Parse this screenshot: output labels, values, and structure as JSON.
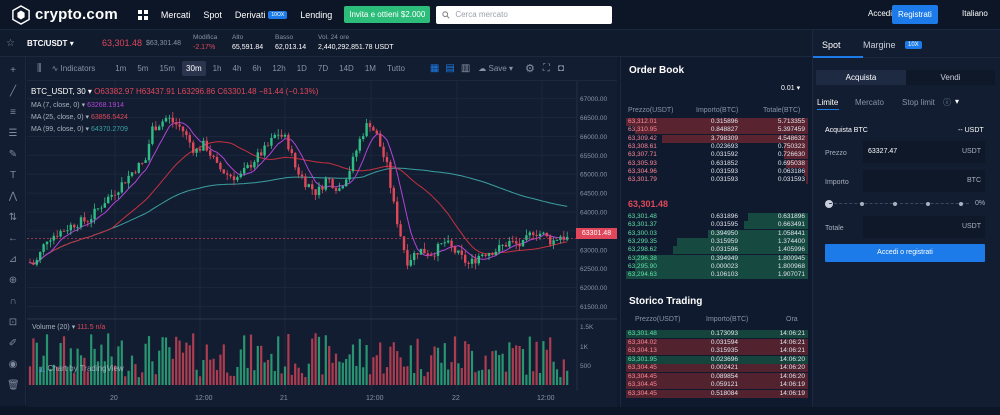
{
  "nav": {
    "brand": "crypto.com",
    "links": [
      {
        "label": "Mercati",
        "badge": ""
      },
      {
        "label": "Spot",
        "badge": ""
      },
      {
        "label": "Derivati",
        "badge": "10OX"
      },
      {
        "label": "Lending",
        "badge": ""
      }
    ],
    "invite_label": "Invita e ottieni $2.000",
    "search_placeholder": "Cerca mercato",
    "login_label": "Accedi",
    "register_label": "Registrati",
    "language": "Italiano"
  },
  "ticker": {
    "pair": "BTC/USDT",
    "price": "63,301.48",
    "price_usd": "$63,301.48",
    "change_label": "Modifica",
    "change_value": "-2.17%",
    "high_label": "Alto",
    "high_value": "65,591.84",
    "low_label": "Basso",
    "low_value": "62,013.14",
    "vol_label": "Vol. 24 ore",
    "vol_value": "2,440,292,851.78 USDT"
  },
  "chart_toolbar": {
    "indicators_label": "Indicators",
    "timeframes": [
      "1m",
      "5m",
      "15m",
      "30m",
      "1h",
      "4h",
      "6h",
      "12h",
      "1D",
      "7D",
      "14D",
      "1M",
      "Tutto"
    ],
    "active_timeframe": "30m",
    "save_label": "Save"
  },
  "chart_legend": {
    "symbol": "BTC_USDT, 30",
    "ohlc": "O63382.97 H63437.91 L63296.86 C63301.48 −81.44 (−0.13%)",
    "ma7": "MA (7, close, 0)",
    "ma7_val": "63268.1914",
    "ma25": "MA (25, close, 0)",
    "ma25_val": "63856.5424",
    "ma99": "MA (99, close, 0)",
    "ma99_val": "64370.2709",
    "volume": "Volume (20)",
    "volume_val": "111.5  n/a",
    "watermark": "Chart by TradingView",
    "last_price_tag": "63301.48"
  },
  "chart_data": {
    "type": "candlestick",
    "y_ticks": [
      "67000.00",
      "66500.00",
      "66000.00",
      "65500.00",
      "65000.00",
      "64500.00",
      "64000.00",
      "63500.00",
      "63000.00",
      "62500.00",
      "62000.00",
      "61500.00"
    ],
    "ylim": [
      61300,
      67150
    ],
    "vol_ticks": [
      "1.5K",
      "1K",
      "500"
    ],
    "x_ticks": [
      "20",
      "12:00",
      "21",
      "12:00",
      "22",
      "12:00"
    ],
    "colors": {
      "up": "#2ebd85",
      "down": "#e0475a",
      "ma7": "#b044d8",
      "ma25": "#c5313f",
      "ma99": "#3aa0a0"
    }
  },
  "orderbook": {
    "title": "Order Book",
    "precision": "0.01",
    "headers": [
      "Prezzo(USDT)",
      "Importo(BTC)",
      "Totale(BTC)"
    ],
    "asks": [
      {
        "price": "63,312.01",
        "amount": "0.315896",
        "total": "5.713355",
        "depth": 1.0
      },
      {
        "price": "63,310.95",
        "amount": "0.848827",
        "total": "5.397459",
        "depth": 0.95
      },
      {
        "price": "63,309.42",
        "amount": "3.798309",
        "total": "4.548632",
        "depth": 0.8
      },
      {
        "price": "63,308.61",
        "amount": "0.023693",
        "total": "0.750323",
        "depth": 0.13
      },
      {
        "price": "63,307.71",
        "amount": "0.031592",
        "total": "0.726630",
        "depth": 0.13
      },
      {
        "price": "63,305.93",
        "amount": "0.631852",
        "total": "0.695038",
        "depth": 0.12
      },
      {
        "price": "63,304.96",
        "amount": "0.031593",
        "total": "0.063186",
        "depth": 0.02
      },
      {
        "price": "63,301.79",
        "amount": "0.031593",
        "total": "0.031593",
        "depth": 0.01
      }
    ],
    "last_price": "63,301.48",
    "bids": [
      {
        "price": "63,301.48",
        "amount": "0.631896",
        "total": "0.631896",
        "depth": 0.33
      },
      {
        "price": "63,301.37",
        "amount": "0.031595",
        "total": "0.663491",
        "depth": 0.35
      },
      {
        "price": "63,300.03",
        "amount": "0.394950",
        "total": "1.058441",
        "depth": 0.55
      },
      {
        "price": "63,299.35",
        "amount": "0.315959",
        "total": "1.374400",
        "depth": 0.72
      },
      {
        "price": "63,298.62",
        "amount": "0.031596",
        "total": "1.405996",
        "depth": 0.74
      },
      {
        "price": "63,296.38",
        "amount": "0.394949",
        "total": "1.800945",
        "depth": 0.95
      },
      {
        "price": "63,295.90",
        "amount": "0.000023",
        "total": "1.800968",
        "depth": 0.95
      },
      {
        "price": "63,294.63",
        "amount": "0.106103",
        "total": "1.907071",
        "depth": 1.0
      }
    ]
  },
  "trades": {
    "title": "Storico Trading",
    "headers": [
      "Prezzo(USDT)",
      "Importo(BTC)",
      "Ora"
    ],
    "rows": [
      {
        "price": "63,301.48",
        "amount": "0.173093",
        "time": "14:06:21",
        "side": "buy"
      },
      {
        "price": "63,304.02",
        "amount": "0.031594",
        "time": "14:06:21",
        "side": "sell"
      },
      {
        "price": "63,304.13",
        "amount": "0.315935",
        "time": "14:06:21",
        "side": "sell"
      },
      {
        "price": "63,301.95",
        "amount": "0.023696",
        "time": "14:06:20",
        "side": "buy"
      },
      {
        "price": "63,304.45",
        "amount": "0.002421",
        "time": "14:06:20",
        "side": "sell"
      },
      {
        "price": "63,304.45",
        "amount": "0.089854",
        "time": "14:06:20",
        "side": "sell"
      },
      {
        "price": "63,304.45",
        "amount": "0.059121",
        "time": "14:06:19",
        "side": "sell"
      },
      {
        "price": "63,304.45",
        "amount": "0.518084",
        "time": "14:06:19",
        "side": "sell"
      }
    ]
  },
  "trade_panel": {
    "tab_spot": "Spot",
    "tab_margin": "Margine",
    "margin_badge": "10X",
    "buy_label": "Acquista",
    "sell_label": "Vendi",
    "order_types": [
      "Limite",
      "Mercato",
      "Stop limit"
    ],
    "buy_title": "Acquista BTC",
    "balance": "-- USDT",
    "price_label": "Prezzo",
    "price_value": "63327.47",
    "price_unit": "USDT",
    "amount_label": "Importo",
    "amount_unit": "BTC",
    "slider_pct": "0%",
    "total_label": "Totale",
    "total_unit": "USDT",
    "submit_label": "Accedi o registrati"
  }
}
